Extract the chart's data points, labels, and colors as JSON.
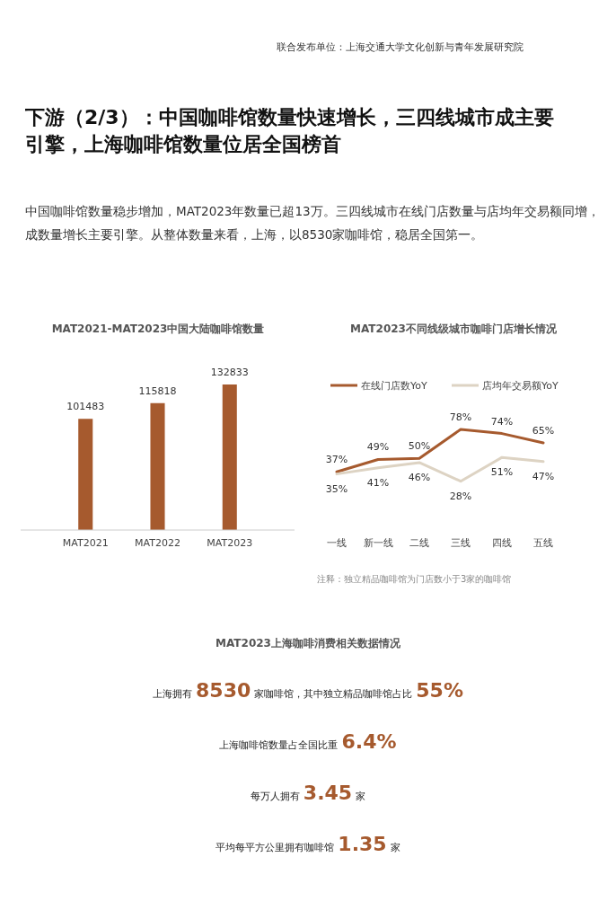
{
  "chart_data": [
    {
      "type": "other",
      "title": "下游（2/3）：中国咖啡馆数量快速增长，三四线城市成主要引擎，上海咖啡馆数量位居全国榜首",
      "subtitle": "中国咖啡馆数量稳步增加，MAT2023年数量已超13万。三四线城市在线门店数量与店均年交易额同增，成数量增长主要引擎。从整体数量来看，上海，以8530家咖啡馆，稳居全国第一。",
      "annotations": [
        "联合发布单位：上海交通大学文化创新与青年发展研究院"
      ]
    },
    {
      "type": "bar",
      "title": "MAT2021-MAT2023中国大陆咖啡馆数量",
      "categories": [
        "MAT2021",
        "MAT2022",
        "MAT2023"
      ],
      "values": [
        101483,
        115818,
        132833
      ],
      "color": "#a65a2e",
      "data_labels": true
    },
    {
      "type": "line",
      "title": "MAT2023不同线级城市咖啡门店增长情况",
      "categories": [
        "一线",
        "新一线",
        "二线",
        "三线",
        "四线",
        "五线"
      ],
      "legend": "top",
      "series": [
        {
          "name": "在线门店数YoY",
          "color": "#a65a2e",
          "values": [
            37,
            49,
            50,
            78,
            74,
            65
          ],
          "value_labels": [
            "37%",
            "49%",
            "50%",
            "78%",
            "74%",
            "65%"
          ]
        },
        {
          "name": "店均年交易额YoY",
          "color": "#ddd3c3",
          "values": [
            35,
            41,
            46,
            28,
            51,
            47
          ],
          "value_labels": [
            "35%",
            "41%",
            "46%",
            "28%",
            "51%",
            "47%"
          ]
        }
      ],
      "annotations": [
        "注释：独立精品咖啡馆为门店数小于3家的咖啡馆"
      ]
    },
    {
      "type": "other",
      "title": "MAT2023上海咖啡消费相关数据情况",
      "annotations": [
        "上海拥有8530家咖啡馆，其中独立精品咖啡馆占比55%",
        "上海咖啡馆数量占全国比重6.4%",
        "每万人拥有3.45家",
        "平均每平方公里拥有咖啡馆1.35家"
      ]
    }
  ]
}
